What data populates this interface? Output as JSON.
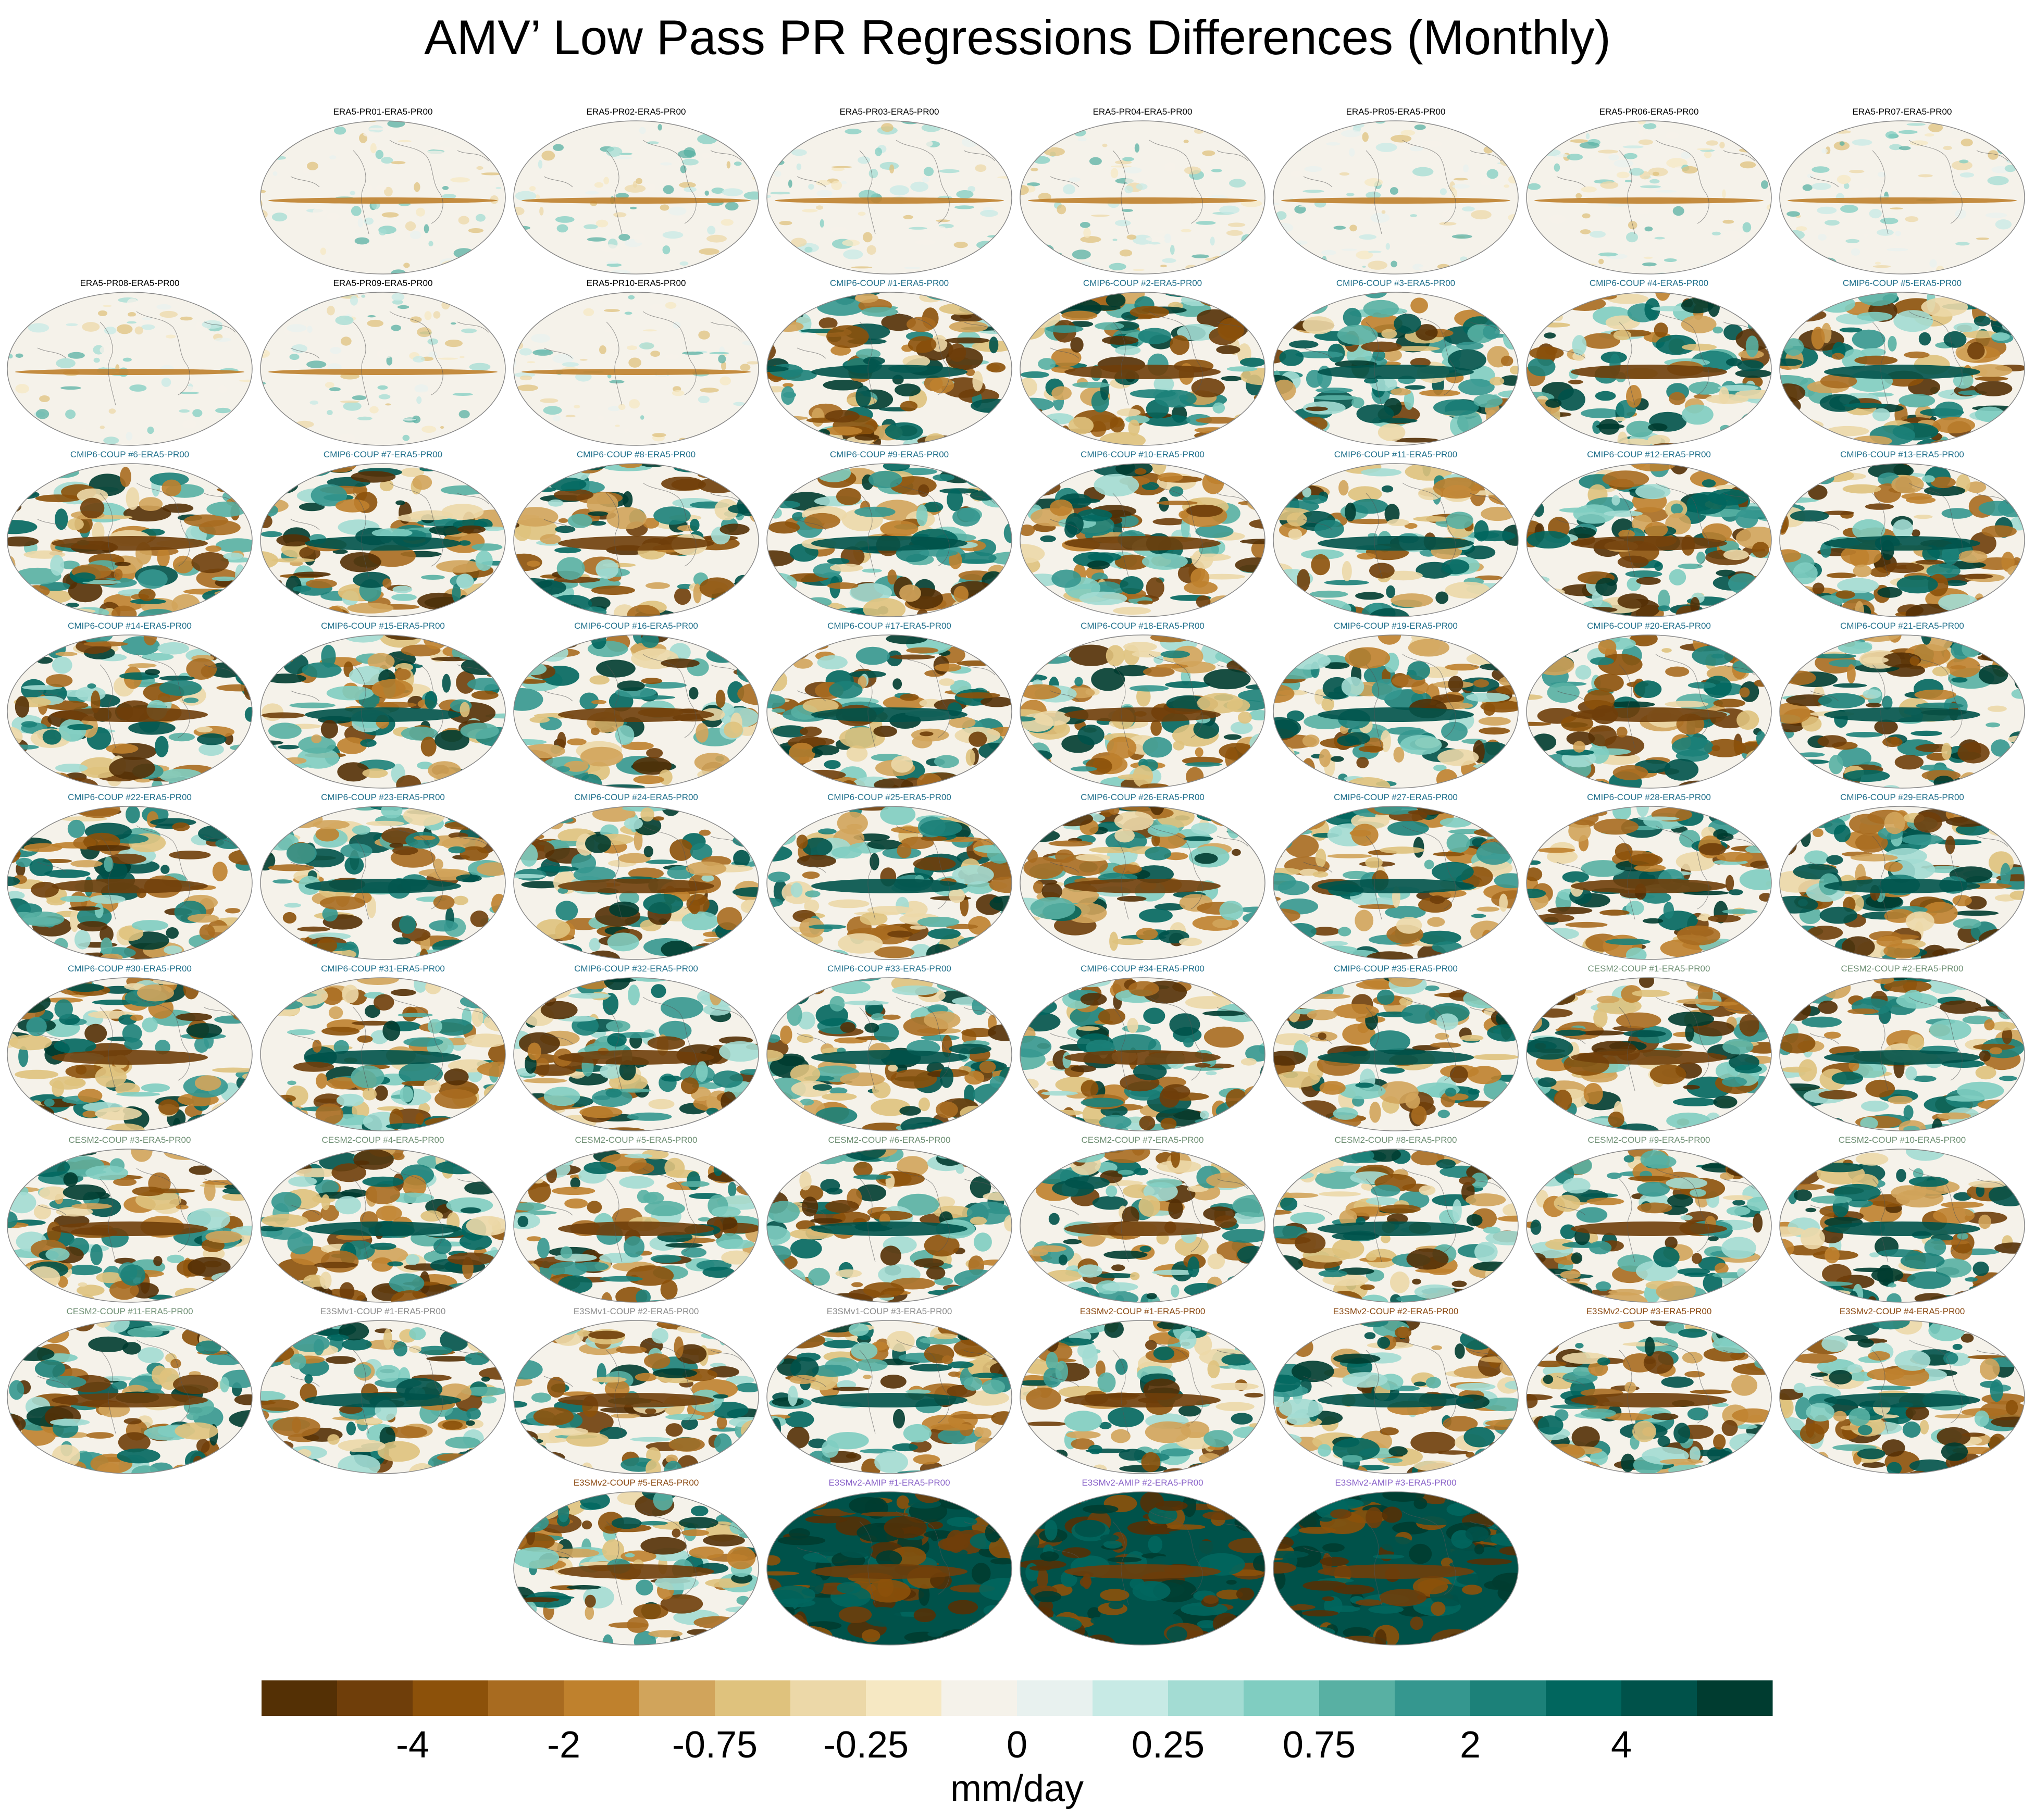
{
  "title": "AMV’ Low Pass PR Regressions Differences (Monthly)",
  "group_colors": {
    "ERA5": "#000000",
    "CMIP6": "#1f6f8b",
    "CESM2": "#6e8f73",
    "E3SMv1": "#8c8c8c",
    "E3SMv2-COUP": "#8b4a12",
    "E3SMv2-AMIP": "#8a63c9"
  },
  "panels": [
    {
      "label": "ERA5-PR01-ERA5-PR00",
      "group": "ERA5"
    },
    {
      "label": "ERA5-PR02-ERA5-PR00",
      "group": "ERA5"
    },
    {
      "label": "ERA5-PR03-ERA5-PR00",
      "group": "ERA5"
    },
    {
      "label": "ERA5-PR04-ERA5-PR00",
      "group": "ERA5"
    },
    {
      "label": "ERA5-PR05-ERA5-PR00",
      "group": "ERA5"
    },
    {
      "label": "ERA5-PR06-ERA5-PR00",
      "group": "ERA5"
    },
    {
      "label": "ERA5-PR07-ERA5-PR00",
      "group": "ERA5"
    },
    {
      "label": "ERA5-PR08-ERA5-PR00",
      "group": "ERA5"
    },
    {
      "label": "ERA5-PR09-ERA5-PR00",
      "group": "ERA5"
    },
    {
      "label": "ERA5-PR10-ERA5-PR00",
      "group": "ERA5"
    },
    {
      "label": "CMIP6-COUP  #1-ERA5-PR00",
      "group": "CMIP6"
    },
    {
      "label": "CMIP6-COUP  #2-ERA5-PR00",
      "group": "CMIP6"
    },
    {
      "label": "CMIP6-COUP  #3-ERA5-PR00",
      "group": "CMIP6"
    },
    {
      "label": "CMIP6-COUP  #4-ERA5-PR00",
      "group": "CMIP6"
    },
    {
      "label": "CMIP6-COUP  #5-ERA5-PR00",
      "group": "CMIP6"
    },
    {
      "label": "CMIP6-COUP  #6-ERA5-PR00",
      "group": "CMIP6"
    },
    {
      "label": "CMIP6-COUP  #7-ERA5-PR00",
      "group": "CMIP6"
    },
    {
      "label": "CMIP6-COUP  #8-ERA5-PR00",
      "group": "CMIP6"
    },
    {
      "label": "CMIP6-COUP  #9-ERA5-PR00",
      "group": "CMIP6"
    },
    {
      "label": "CMIP6-COUP  #10-ERA5-PR00",
      "group": "CMIP6"
    },
    {
      "label": "CMIP6-COUP  #11-ERA5-PR00",
      "group": "CMIP6"
    },
    {
      "label": "CMIP6-COUP  #12-ERA5-PR00",
      "group": "CMIP6"
    },
    {
      "label": "CMIP6-COUP  #13-ERA5-PR00",
      "group": "CMIP6"
    },
    {
      "label": "CMIP6-COUP  #14-ERA5-PR00",
      "group": "CMIP6"
    },
    {
      "label": "CMIP6-COUP  #15-ERA5-PR00",
      "group": "CMIP6"
    },
    {
      "label": "CMIP6-COUP  #16-ERA5-PR00",
      "group": "CMIP6"
    },
    {
      "label": "CMIP6-COUP  #17-ERA5-PR00",
      "group": "CMIP6"
    },
    {
      "label": "CMIP6-COUP  #18-ERA5-PR00",
      "group": "CMIP6"
    },
    {
      "label": "CMIP6-COUP  #19-ERA5-PR00",
      "group": "CMIP6"
    },
    {
      "label": "CMIP6-COUP  #20-ERA5-PR00",
      "group": "CMIP6"
    },
    {
      "label": "CMIP6-COUP  #21-ERA5-PR00",
      "group": "CMIP6"
    },
    {
      "label": "CMIP6-COUP  #22-ERA5-PR00",
      "group": "CMIP6"
    },
    {
      "label": "CMIP6-COUP  #23-ERA5-PR00",
      "group": "CMIP6"
    },
    {
      "label": "CMIP6-COUP  #24-ERA5-PR00",
      "group": "CMIP6"
    },
    {
      "label": "CMIP6-COUP  #25-ERA5-PR00",
      "group": "CMIP6"
    },
    {
      "label": "CMIP6-COUP  #26-ERA5-PR00",
      "group": "CMIP6"
    },
    {
      "label": "CMIP6-COUP  #27-ERA5-PR00",
      "group": "CMIP6"
    },
    {
      "label": "CMIP6-COUP  #28-ERA5-PR00",
      "group": "CMIP6"
    },
    {
      "label": "CMIP6-COUP  #29-ERA5-PR00",
      "group": "CMIP6"
    },
    {
      "label": "CMIP6-COUP  #30-ERA5-PR00",
      "group": "CMIP6"
    },
    {
      "label": "CMIP6-COUP  #31-ERA5-PR00",
      "group": "CMIP6"
    },
    {
      "label": "CMIP6-COUP  #32-ERA5-PR00",
      "group": "CMIP6"
    },
    {
      "label": "CMIP6-COUP  #33-ERA5-PR00",
      "group": "CMIP6"
    },
    {
      "label": "CMIP6-COUP  #34-ERA5-PR00",
      "group": "CMIP6"
    },
    {
      "label": "CMIP6-COUP  #35-ERA5-PR00",
      "group": "CMIP6"
    },
    {
      "label": "CESM2-COUP  #1-ERA5-PR00",
      "group": "CESM2"
    },
    {
      "label": "CESM2-COUP  #2-ERA5-PR00",
      "group": "CESM2"
    },
    {
      "label": "CESM2-COUP  #3-ERA5-PR00",
      "group": "CESM2"
    },
    {
      "label": "CESM2-COUP  #4-ERA5-PR00",
      "group": "CESM2"
    },
    {
      "label": "CESM2-COUP  #5-ERA5-PR00",
      "group": "CESM2"
    },
    {
      "label": "CESM2-COUP  #6-ERA5-PR00",
      "group": "CESM2"
    },
    {
      "label": "CESM2-COUP  #7-ERA5-PR00",
      "group": "CESM2"
    },
    {
      "label": "CESM2-COUP  #8-ERA5-PR00",
      "group": "CESM2"
    },
    {
      "label": "CESM2-COUP  #9-ERA5-PR00",
      "group": "CESM2"
    },
    {
      "label": "CESM2-COUP  #10-ERA5-PR00",
      "group": "CESM2"
    },
    {
      "label": "CESM2-COUP  #11-ERA5-PR00",
      "group": "CESM2"
    },
    {
      "label": "E3SMv1-COUP  #1-ERA5-PR00",
      "group": "E3SMv1"
    },
    {
      "label": "E3SMv1-COUP  #2-ERA5-PR00",
      "group": "E3SMv1"
    },
    {
      "label": "E3SMv1-COUP  #3-ERA5-PR00",
      "group": "E3SMv1"
    },
    {
      "label": "E3SMv2-COUP  #1-ERA5-PR00",
      "group": "E3SMv2-COUP"
    },
    {
      "label": "E3SMv2-COUP  #2-ERA5-PR00",
      "group": "E3SMv2-COUP"
    },
    {
      "label": "E3SMv2-COUP  #3-ERA5-PR00",
      "group": "E3SMv2-COUP"
    },
    {
      "label": "E3SMv2-COUP  #4-ERA5-PR00",
      "group": "E3SMv2-COUP"
    },
    {
      "label": "E3SMv2-COUP  #5-ERA5-PR00",
      "group": "E3SMv2-COUP"
    },
    {
      "label": "E3SMv2-AMIP  #1-ERA5-PR00",
      "group": "E3SMv2-AMIP"
    },
    {
      "label": "E3SMv2-AMIP  #2-ERA5-PR00",
      "group": "E3SMv2-AMIP"
    },
    {
      "label": "E3SMv2-AMIP  #3-ERA5-PR00",
      "group": "E3SMv2-AMIP"
    }
  ],
  "chart_data": {
    "type": "heatmap",
    "title": "AMV’ Low Pass PR Regressions Differences (Monthly)",
    "projection": "Robinson-like global maps",
    "colorbar": {
      "label": "mm/day",
      "tick_labels": [
        "-4",
        "-2",
        "-0.75",
        "-0.25",
        "0",
        "0.25",
        "0.75",
        "2",
        "4"
      ],
      "colors": [
        "#543005",
        "#6f3e0a",
        "#8c510a",
        "#a86b20",
        "#bf812d",
        "#d1a45b",
        "#dfc27d",
        "#ecd8a8",
        "#f6e8c3",
        "#f5f2ea",
        "#e8f1ef",
        "#c7eae5",
        "#a3dcd3",
        "#80cdc1",
        "#58b0a3",
        "#35978f",
        "#1c8179",
        "#01665e",
        "#00524a",
        "#003c30"
      ]
    }
  }
}
